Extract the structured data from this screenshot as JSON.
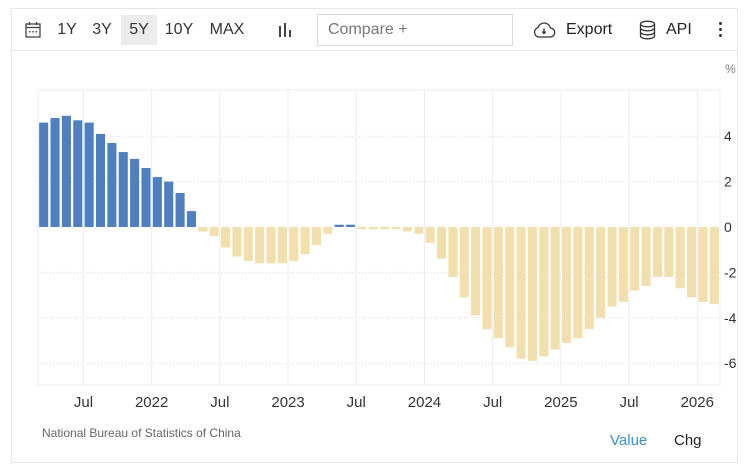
{
  "toolbar": {
    "calendar_icon": "calendar-icon",
    "ranges": [
      {
        "label": "1Y",
        "active": false
      },
      {
        "label": "3Y",
        "active": false
      },
      {
        "label": "5Y",
        "active": true
      },
      {
        "label": "10Y",
        "active": false
      },
      {
        "label": "MAX",
        "active": false
      }
    ],
    "chart_type_icon": "bar-chart-icon",
    "compare_placeholder": "Compare +",
    "export_label": "Export",
    "api_label": "API",
    "more_icon": "more-vertical-icon"
  },
  "footer": {
    "source": "National Bureau of Statistics of China",
    "value_label": "Value",
    "chg_label": "Chg"
  },
  "colors": {
    "positive": "#4f7fbf",
    "negative": "#f2dfae",
    "active_link": "#3f8fc4"
  },
  "chart_data": {
    "type": "bar",
    "title": "",
    "xlabel": "",
    "ylabel": "%",
    "unit_label": "%",
    "ylim": [
      -7,
      6
    ],
    "yticks": [
      4,
      2,
      0,
      -2,
      -4,
      -6
    ],
    "xtick_labels": [
      {
        "label": "Jul",
        "index": 4
      },
      {
        "label": "2022",
        "index": 10
      },
      {
        "label": "Jul",
        "index": 16
      },
      {
        "label": "2023",
        "index": 22
      },
      {
        "label": "Jul",
        "index": 28
      },
      {
        "label": "2024",
        "index": 34
      },
      {
        "label": "Jul",
        "index": 40
      },
      {
        "label": "2025",
        "index": 46
      },
      {
        "label": "Jul",
        "index": 52
      },
      {
        "label": "2026",
        "index": 58
      }
    ],
    "grid": true,
    "legend": "none",
    "categories": [
      "2021-03",
      "2021-04",
      "2021-05",
      "2021-06",
      "2021-07",
      "2021-08",
      "2021-09",
      "2021-10",
      "2021-11",
      "2021-12",
      "2022-01",
      "2022-02",
      "2022-03",
      "2022-04",
      "2022-05",
      "2022-06",
      "2022-07",
      "2022-08",
      "2022-09",
      "2022-10",
      "2022-11",
      "2022-12",
      "2023-01",
      "2023-02",
      "2023-03",
      "2023-04",
      "2023-05",
      "2023-06",
      "2023-07",
      "2023-08",
      "2023-09",
      "2023-10",
      "2023-11",
      "2023-12",
      "2024-01",
      "2024-02",
      "2024-03",
      "2024-04",
      "2024-05",
      "2024-06",
      "2024-07",
      "2024-08",
      "2024-09",
      "2024-10",
      "2024-11",
      "2024-12",
      "2025-01",
      "2025-02",
      "2025-03",
      "2025-04",
      "2025-05",
      "2025-06",
      "2025-07",
      "2025-08",
      "2025-09",
      "2025-10",
      "2025-11",
      "2025-12",
      "2026-01",
      "2026-02"
    ],
    "values": [
      4.6,
      4.8,
      4.9,
      4.7,
      4.6,
      4.1,
      3.7,
      3.3,
      3.0,
      2.6,
      2.2,
      2.0,
      1.5,
      0.7,
      -0.2,
      -0.4,
      -0.9,
      -1.3,
      -1.5,
      -1.6,
      -1.6,
      -1.6,
      -1.5,
      -1.2,
      -0.8,
      -0.3,
      0.1,
      0.1,
      -0.1,
      -0.1,
      -0.1,
      -0.1,
      -0.2,
      -0.3,
      -0.7,
      -1.4,
      -2.2,
      -3.1,
      -3.9,
      -4.5,
      -4.9,
      -5.3,
      -5.8,
      -5.9,
      -5.7,
      -5.4,
      -5.1,
      -4.9,
      -4.5,
      -4.0,
      -3.5,
      -3.3,
      -2.8,
      -2.6,
      -2.2,
      -2.2,
      -2.7,
      -3.1,
      -3.3,
      -3.4
    ]
  }
}
